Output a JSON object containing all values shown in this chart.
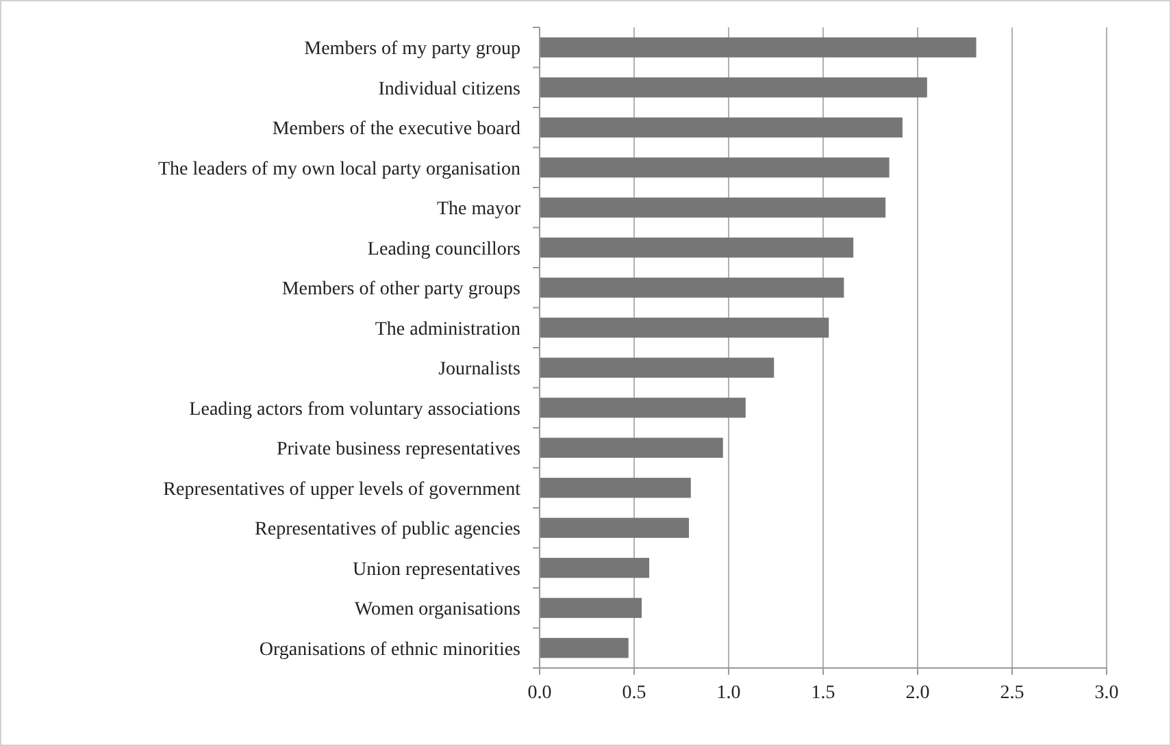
{
  "chart_data": {
    "type": "bar",
    "orientation": "horizontal",
    "categories": [
      "Members of my party group",
      "Individual citizens",
      "Members of the executive board",
      "The leaders of my own local party organisation",
      "The mayor",
      "Leading councillors",
      "Members of other party groups",
      "The administration",
      "Journalists",
      "Leading actors from voluntary associations",
      "Private business representatives",
      "Representatives of upper levels of government",
      "Representatives of public agencies",
      "Union representatives",
      "Women organisations",
      "Organisations of ethnic minorities"
    ],
    "values": [
      2.31,
      2.05,
      1.92,
      1.85,
      1.83,
      1.66,
      1.61,
      1.53,
      1.24,
      1.09,
      0.97,
      0.8,
      0.79,
      0.58,
      0.54,
      0.47
    ],
    "color": "#767676",
    "xlim": [
      0,
      3
    ],
    "xticks": [
      {
        "value": 0,
        "label": "0.0"
      },
      {
        "value": 0.5,
        "label": "0.5"
      },
      {
        "value": 1,
        "label": "1.0"
      },
      {
        "value": 1.5,
        "label": "1.5"
      },
      {
        "value": 2,
        "label": "2.0"
      },
      {
        "value": 2.5,
        "label": "2.5"
      },
      {
        "value": 3,
        "label": "3.0"
      }
    ],
    "grid": "x"
  }
}
